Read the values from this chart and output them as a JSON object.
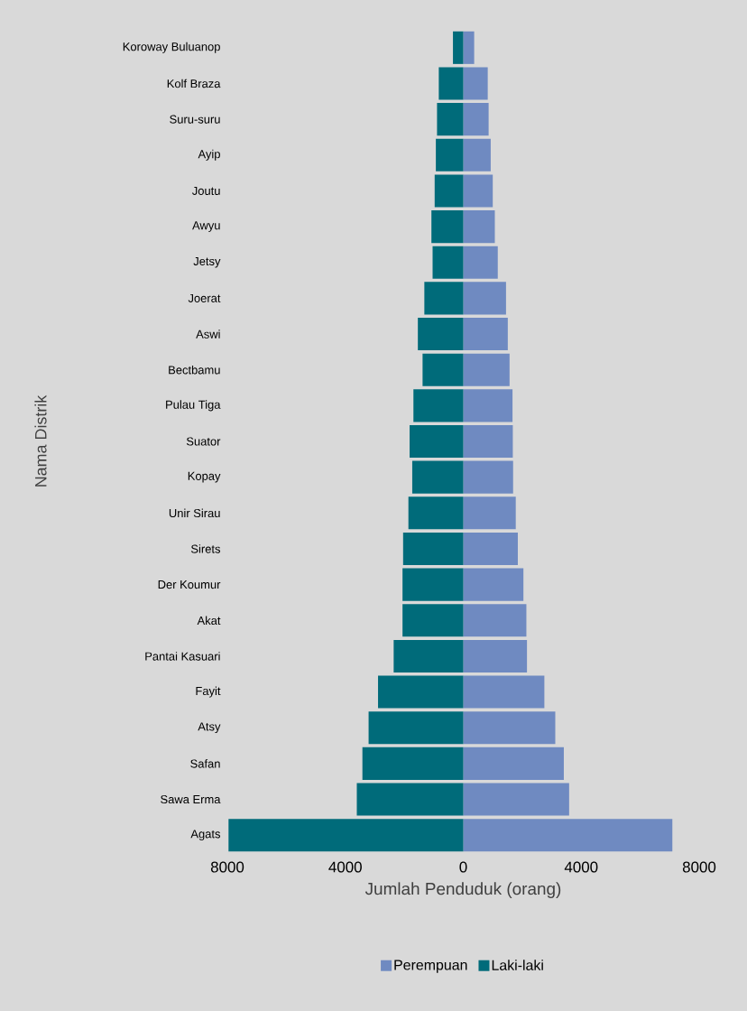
{
  "chart_data": {
    "type": "bar",
    "orientation": "horizontal",
    "stacked": true,
    "xlabel": "Jumlah Penduduk (orang)",
    "ylabel": "Nama Distrik",
    "categories": [
      "Koroway Buluanop",
      "Kolf Braza",
      "Suru-suru",
      "Ayip",
      "Joutu",
      "Awyu",
      "Jetsy",
      "Joerat",
      "Aswi",
      "Bectbamu",
      "Pulau Tiga",
      "Suator",
      "Kopay",
      "Unir Sirau",
      "Sirets",
      "Der Koumur",
      "Akat",
      "Pantai Kasuari",
      "Fayit",
      "Atsy",
      "Safan",
      "Sawa Erma",
      "Agats"
    ],
    "series": [
      {
        "name": "Laki-laki",
        "color": "#006b7a",
        "values": [
          -350,
          -830,
          -890,
          -930,
          -970,
          -1080,
          -1040,
          -1320,
          -1540,
          -1380,
          -1690,
          -1820,
          -1730,
          -1860,
          -2040,
          -2060,
          -2060,
          -2360,
          -2890,
          -3210,
          -3420,
          -3610,
          -7960
        ]
      },
      {
        "name": "Perempuan",
        "color": "#6f8ac1",
        "values": [
          370,
          830,
          860,
          930,
          1000,
          1070,
          1170,
          1450,
          1510,
          1570,
          1670,
          1680,
          1690,
          1780,
          1850,
          2040,
          2140,
          2160,
          2750,
          3120,
          3410,
          3590,
          7090
        ]
      }
    ],
    "xlim": [
      -8000,
      8000
    ],
    "xticks": [
      {
        "value": -8000,
        "label": "8000"
      },
      {
        "value": -4000,
        "label": "4000"
      },
      0,
      4000,
      8000
    ],
    "legend": "bottom"
  }
}
